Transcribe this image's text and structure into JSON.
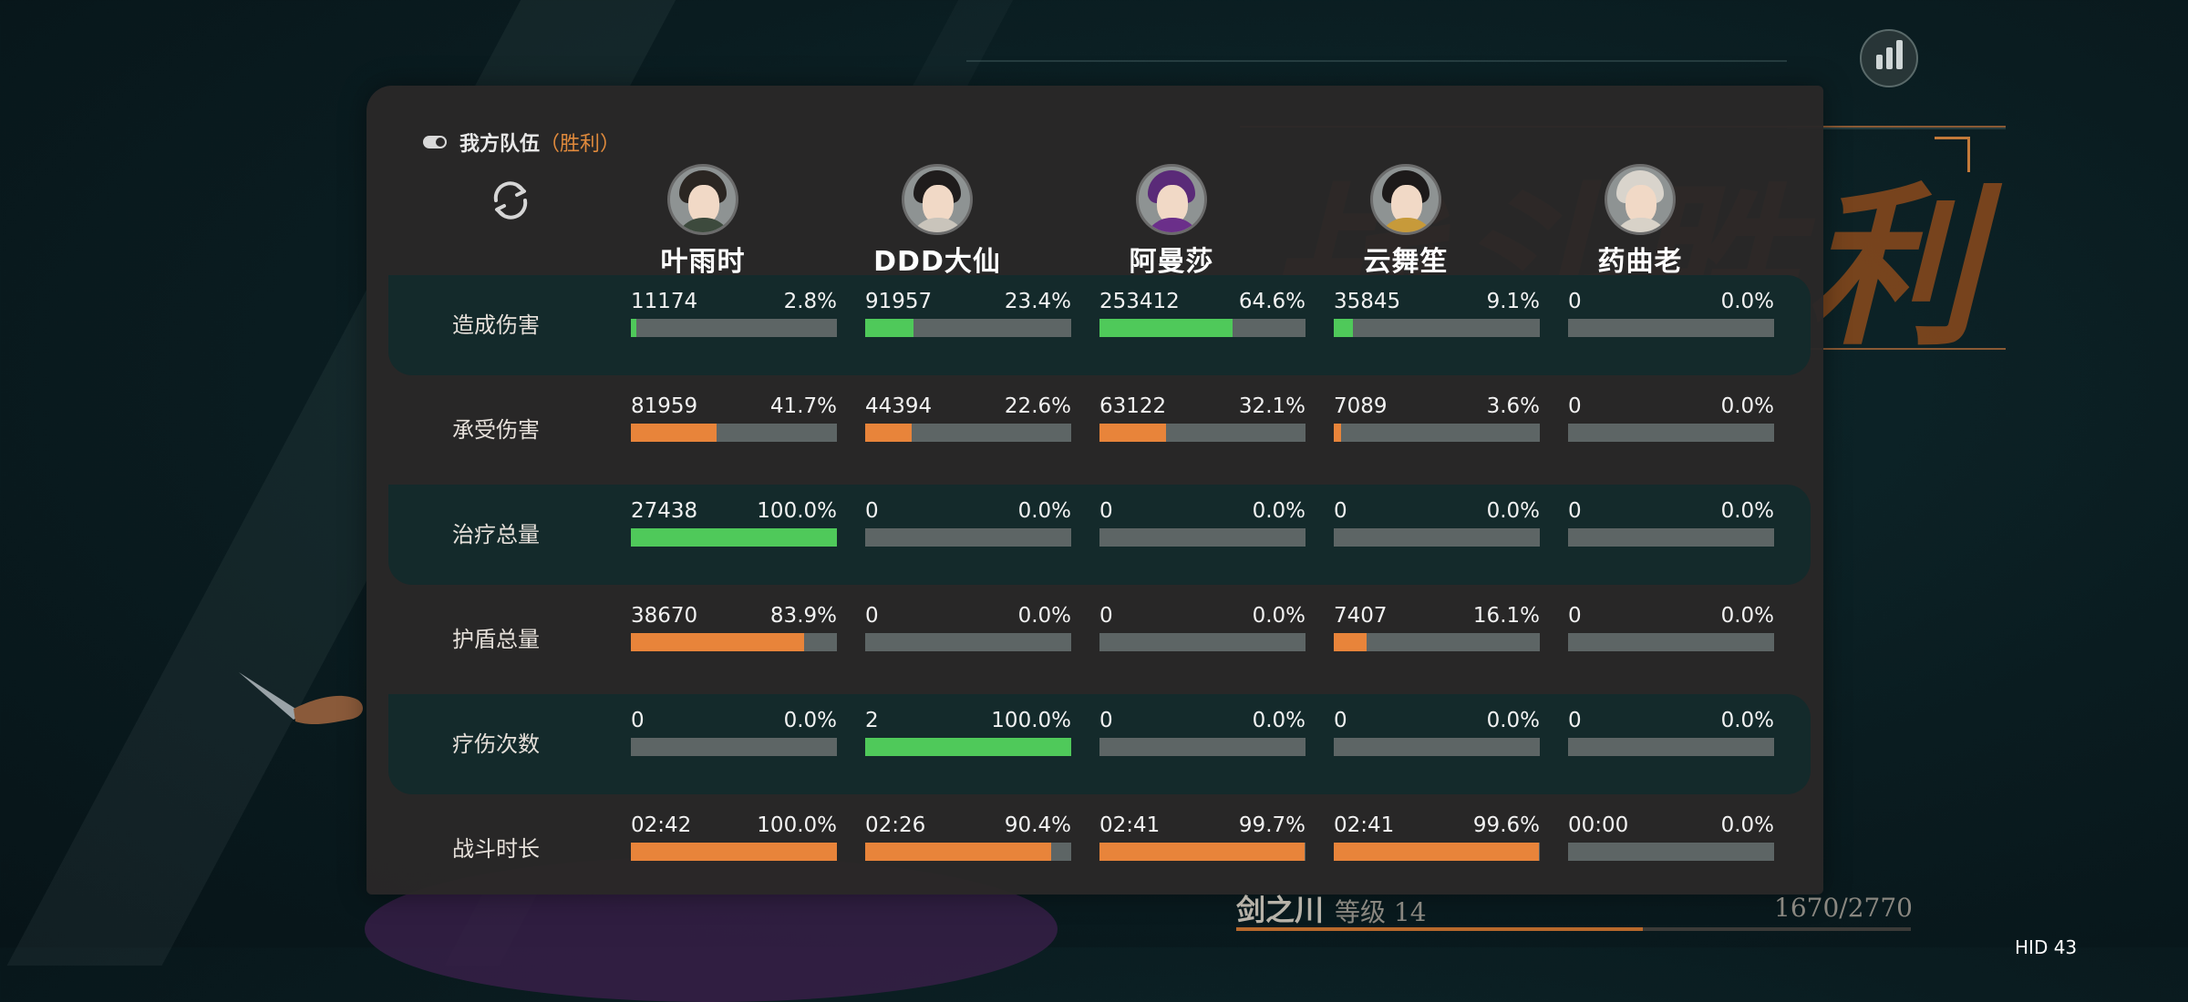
{
  "panel": {
    "title": "我方队伍",
    "result": "（胜利）"
  },
  "players": [
    {
      "name": "叶雨时",
      "hair": "#2b2622",
      "body": "#3d4a3d"
    },
    {
      "name": "DDD大仙",
      "hair": "#1f1c1c",
      "body": "#c9c4bb"
    },
    {
      "name": "阿曼莎",
      "hair": "#5a2a78",
      "body": "#6b2f8a"
    },
    {
      "name": "云舞笙",
      "hair": "#1d1a1a",
      "body": "#c79a3a"
    },
    {
      "name": "药曲老",
      "hair": "#d9d4cc",
      "body": "#d8d2c8"
    }
  ],
  "stats": [
    {
      "label": "造成伤害",
      "color": "#4fc95a",
      "alt": true,
      "cells": [
        {
          "value": "11174",
          "pct": "2.8%",
          "fraction": 0.028
        },
        {
          "value": "91957",
          "pct": "23.4%",
          "fraction": 0.234
        },
        {
          "value": "253412",
          "pct": "64.6%",
          "fraction": 0.646
        },
        {
          "value": "35845",
          "pct": "9.1%",
          "fraction": 0.091
        },
        {
          "value": "0",
          "pct": "0.0%",
          "fraction": 0
        }
      ]
    },
    {
      "label": "承受伤害",
      "color": "#e8843a",
      "alt": false,
      "cells": [
        {
          "value": "81959",
          "pct": "41.7%",
          "fraction": 0.417
        },
        {
          "value": "44394",
          "pct": "22.6%",
          "fraction": 0.226
        },
        {
          "value": "63122",
          "pct": "32.1%",
          "fraction": 0.321
        },
        {
          "value": "7089",
          "pct": "3.6%",
          "fraction": 0.036
        },
        {
          "value": "0",
          "pct": "0.0%",
          "fraction": 0
        }
      ]
    },
    {
      "label": "治疗总量",
      "color": "#4fc95a",
      "alt": true,
      "cells": [
        {
          "value": "27438",
          "pct": "100.0%",
          "fraction": 1.0
        },
        {
          "value": "0",
          "pct": "0.0%",
          "fraction": 0
        },
        {
          "value": "0",
          "pct": "0.0%",
          "fraction": 0
        },
        {
          "value": "0",
          "pct": "0.0%",
          "fraction": 0
        },
        {
          "value": "0",
          "pct": "0.0%",
          "fraction": 0
        }
      ]
    },
    {
      "label": "护盾总量",
      "color": "#e8843a",
      "alt": false,
      "cells": [
        {
          "value": "38670",
          "pct": "83.9%",
          "fraction": 0.839
        },
        {
          "value": "0",
          "pct": "0.0%",
          "fraction": 0
        },
        {
          "value": "0",
          "pct": "0.0%",
          "fraction": 0
        },
        {
          "value": "7407",
          "pct": "16.1%",
          "fraction": 0.161
        },
        {
          "value": "0",
          "pct": "0.0%",
          "fraction": 0
        }
      ]
    },
    {
      "label": "疗伤次数",
      "color": "#4fc95a",
      "alt": true,
      "cells": [
        {
          "value": "0",
          "pct": "0.0%",
          "fraction": 0
        },
        {
          "value": "2",
          "pct": "100.0%",
          "fraction": 1.0
        },
        {
          "value": "0",
          "pct": "0.0%",
          "fraction": 0
        },
        {
          "value": "0",
          "pct": "0.0%",
          "fraction": 0
        },
        {
          "value": "0",
          "pct": "0.0%",
          "fraction": 0
        }
      ]
    },
    {
      "label": "战斗时长",
      "color": "#e8843a",
      "alt": false,
      "cells": [
        {
          "value": "02:42",
          "pct": "100.0%",
          "fraction": 1.0
        },
        {
          "value": "02:26",
          "pct": "90.4%",
          "fraction": 0.904
        },
        {
          "value": "02:41",
          "pct": "99.7%",
          "fraction": 0.997
        },
        {
          "value": "02:41",
          "pct": "99.6%",
          "fraction": 0.996
        },
        {
          "value": "00:00",
          "pct": "0.0%",
          "fraction": 0
        }
      ]
    }
  ],
  "background": {
    "victory_text": "战斗胜利"
  },
  "footer": {
    "character": "剑之川",
    "level": "等级 14",
    "xp": "1670/2770",
    "xp_fraction": 0.603,
    "hud": "HID 43"
  },
  "icons": {
    "toggle": "toggle-icon",
    "refresh": "refresh-icon",
    "stats": "bar-chart-icon"
  }
}
